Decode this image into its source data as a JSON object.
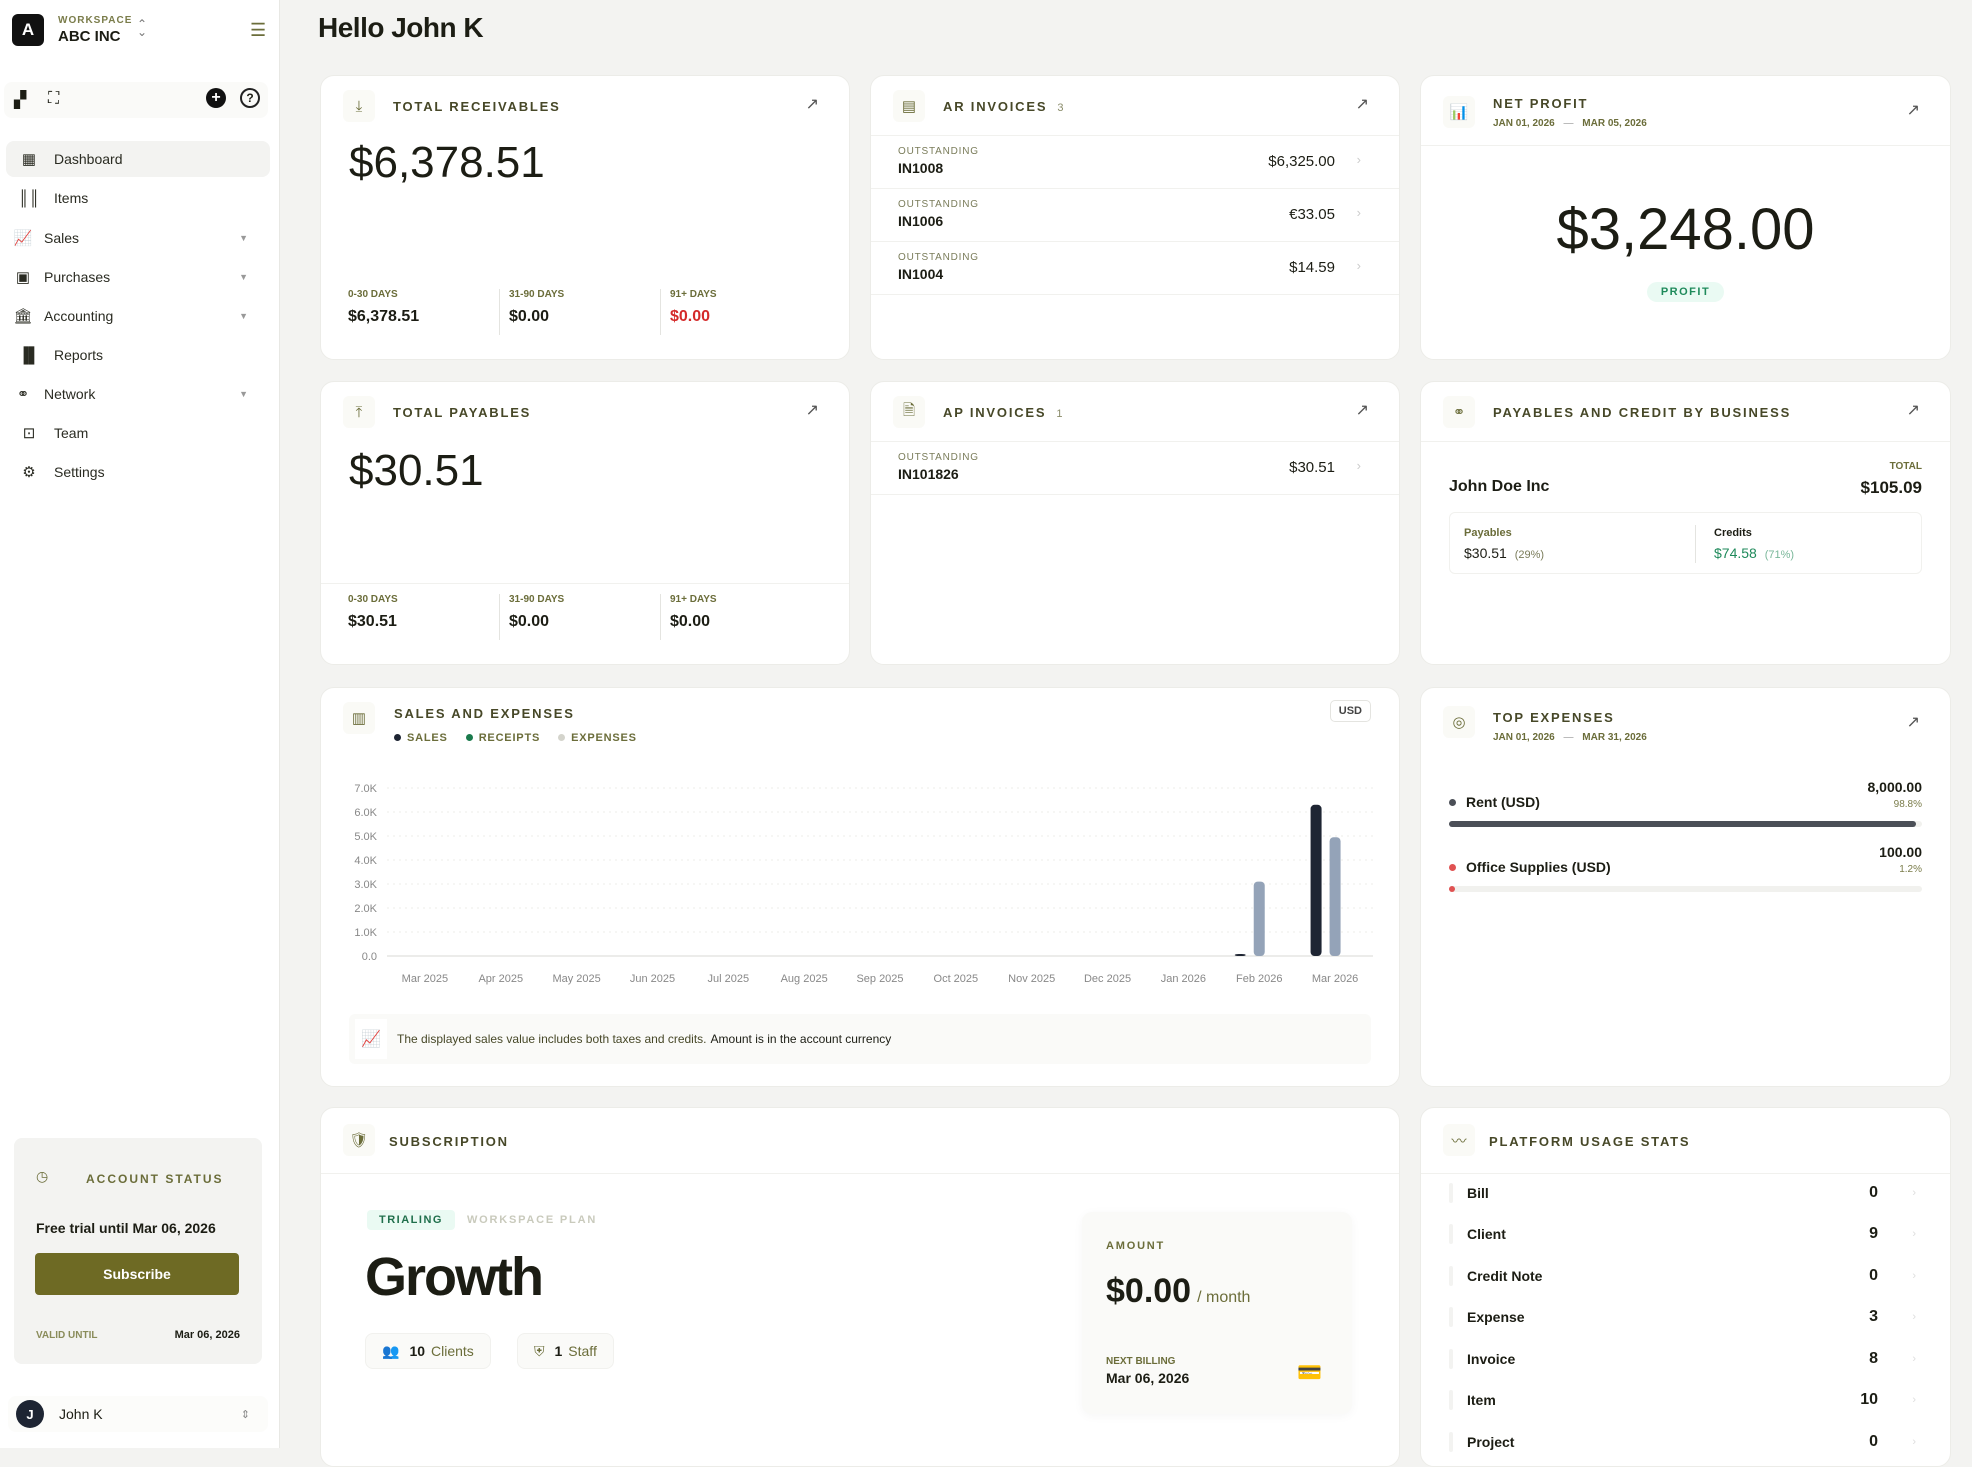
{
  "workspace": {
    "label": "WORKSPACE",
    "name": "ABC INC",
    "logo_letter": "A"
  },
  "sidebar": {
    "items": [
      {
        "label": "Dashboard",
        "icon": "dashboard-icon",
        "active": true
      },
      {
        "label": "Items",
        "icon": "barcode-icon"
      },
      {
        "label": "Sales",
        "icon": "sales-chart-icon",
        "expandable": true
      },
      {
        "label": "Purchases",
        "icon": "money-icon",
        "expandable": true
      },
      {
        "label": "Accounting",
        "icon": "bank-icon",
        "expandable": true
      },
      {
        "label": "Reports",
        "icon": "bar-chart-icon"
      },
      {
        "label": "Network",
        "icon": "handshake-icon",
        "expandable": true
      },
      {
        "label": "Team",
        "icon": "contact-icon"
      },
      {
        "label": "Settings",
        "icon": "gear-icon"
      }
    ]
  },
  "account_status": {
    "title": "ACCOUNT STATUS",
    "trial_text": "Free trial until Mar 06, 2026",
    "subscribe_label": "Subscribe",
    "valid_until_label": "VALID UNTIL",
    "valid_until": "Mar 06, 2026"
  },
  "user": {
    "initial": "J",
    "name": "John K"
  },
  "greeting": "Hello John K",
  "receivables": {
    "title": "TOTAL RECEIVABLES",
    "total": "$6,378.51",
    "aging": [
      {
        "label": "0-30 DAYS",
        "value": "$6,378.51"
      },
      {
        "label": "31-90 DAYS",
        "value": "$0.00"
      },
      {
        "label": "91+ DAYS",
        "value": "$0.00"
      }
    ]
  },
  "payables": {
    "title": "TOTAL PAYABLES",
    "total": "$30.51",
    "aging": [
      {
        "label": "0-30 DAYS",
        "value": "$30.51"
      },
      {
        "label": "31-90 DAYS",
        "value": "$0.00"
      },
      {
        "label": "91+ DAYS",
        "value": "$0.00"
      }
    ]
  },
  "ar_invoices": {
    "title": "AR INVOICES",
    "count": "3",
    "rows": [
      {
        "status": "OUTSTANDING",
        "number": "IN1008",
        "amount": "$6,325.00"
      },
      {
        "status": "OUTSTANDING",
        "number": "IN1006",
        "amount": "€33.05"
      },
      {
        "status": "OUTSTANDING",
        "number": "IN1004",
        "amount": "$14.59"
      }
    ]
  },
  "ap_invoices": {
    "title": "AP INVOICES",
    "count": "1",
    "rows": [
      {
        "status": "OUTSTANDING",
        "number": "IN101826",
        "amount": "$30.51"
      }
    ]
  },
  "net_profit": {
    "title": "NET PROFIT",
    "date_from": "JAN 01, 2026",
    "date_sep": "—",
    "date_to": "MAR 05, 2026",
    "value": "$3,248.00",
    "badge": "PROFIT"
  },
  "payables_credit": {
    "title": "PAYABLES AND CREDIT BY BUSINESS",
    "business": "John Doe Inc",
    "total_label": "TOTAL",
    "total": "$105.09",
    "payables_label": "Payables",
    "payables": "$30.51",
    "payables_pct": "(29%)",
    "credits_label": "Credits",
    "credits": "$74.58",
    "credits_pct": "(71%)"
  },
  "sales_expenses": {
    "title": "SALES AND EXPENSES",
    "currency": "USD",
    "note_a": "The displayed sales value includes both taxes and credits.",
    "note_b": "Amount is in the account currency"
  },
  "chart_data": {
    "type": "bar",
    "categories": [
      "Mar 2025",
      "Apr 2025",
      "May 2025",
      "Jun 2025",
      "Jul 2025",
      "Aug 2025",
      "Sep 2025",
      "Oct 2025",
      "Nov 2025",
      "Dec 2025",
      "Jan 2026",
      "Feb 2026",
      "Mar 2026"
    ],
    "series": [
      {
        "name": "SALES",
        "color": "#1e2533",
        "values": [
          0,
          0,
          0,
          0,
          0,
          0,
          0,
          0,
          0,
          0,
          0,
          50,
          6300
        ]
      },
      {
        "name": "RECEIPTS",
        "color": "#1a7a4c",
        "values": [
          0,
          0,
          0,
          0,
          0,
          0,
          0,
          0,
          0,
          0,
          0,
          0,
          0
        ]
      },
      {
        "name": "EXPENSES",
        "color": "#94a3b8",
        "values": [
          0,
          0,
          0,
          0,
          0,
          0,
          0,
          0,
          0,
          0,
          0,
          3100,
          4950
        ]
      }
    ],
    "y_ticks": [
      "0.0",
      "1.0K",
      "2.0K",
      "3.0K",
      "4.0K",
      "5.0K",
      "6.0K",
      "7.0K"
    ],
    "ylim": [
      0,
      7000
    ],
    "grid": true,
    "legend": "top-left"
  },
  "top_expenses": {
    "title": "TOP EXPENSES",
    "date_from": "JAN 01, 2026",
    "date_sep": "—",
    "date_to": "MAR 31, 2026",
    "items": [
      {
        "label": "Rent (USD)",
        "amount": "8,000.00",
        "pct": "98.8%",
        "fraction": 0.988,
        "color": "#4b4f57"
      },
      {
        "label": "Office Supplies (USD)",
        "amount": "100.00",
        "pct": "1.2%",
        "fraction": 0.012,
        "color": "#e05252"
      }
    ]
  },
  "subscription": {
    "title": "SUBSCRIPTION",
    "status": "TRIALING",
    "plan_type": "WORKSPACE PLAN",
    "plan": "Growth",
    "clients_count": "10",
    "clients_label": "Clients",
    "staff_count": "1",
    "staff_label": "Staff",
    "amount_label": "AMOUNT",
    "amount": "$0.00",
    "period": "/ month",
    "next_billing_label": "NEXT BILLING",
    "next_billing": "Mar 06, 2026"
  },
  "usage": {
    "title": "PLATFORM USAGE STATS",
    "rows": [
      {
        "label": "Bill",
        "count": "0"
      },
      {
        "label": "Client",
        "count": "9"
      },
      {
        "label": "Credit Note",
        "count": "0"
      },
      {
        "label": "Expense",
        "count": "3"
      },
      {
        "label": "Invoice",
        "count": "8"
      },
      {
        "label": "Item",
        "count": "10"
      },
      {
        "label": "Project",
        "count": "0"
      }
    ]
  }
}
